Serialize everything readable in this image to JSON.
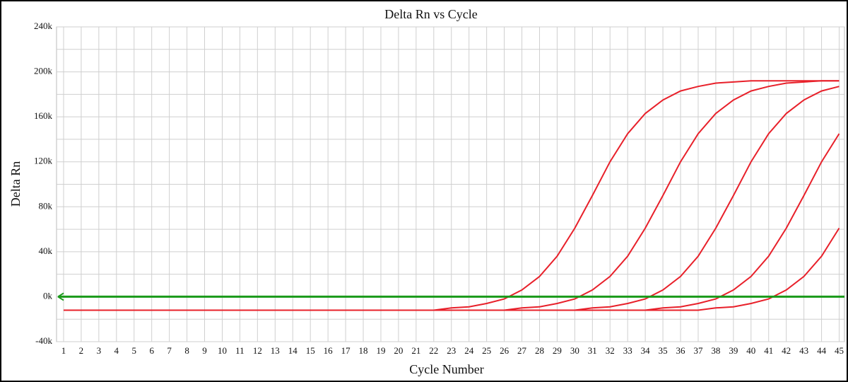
{
  "chart_data": {
    "type": "line",
    "title": "Delta Rn vs Cycle",
    "x_label": "Cycle Number",
    "y_label": "Delta Rn",
    "x": [
      1,
      2,
      3,
      4,
      5,
      6,
      7,
      8,
      9,
      10,
      11,
      12,
      13,
      14,
      15,
      16,
      17,
      18,
      19,
      20,
      21,
      22,
      23,
      24,
      25,
      26,
      27,
      28,
      29,
      30,
      31,
      32,
      33,
      34,
      35,
      36,
      37,
      38,
      39,
      40,
      41,
      42,
      43,
      44,
      45
    ],
    "xlim": [
      0.6,
      45.3
    ],
    "xticks": [
      1,
      2,
      3,
      4,
      5,
      6,
      7,
      8,
      9,
      10,
      11,
      12,
      13,
      14,
      15,
      16,
      17,
      18,
      19,
      20,
      21,
      22,
      23,
      24,
      25,
      26,
      27,
      28,
      29,
      30,
      31,
      32,
      33,
      34,
      35,
      36,
      37,
      38,
      39,
      40,
      41,
      42,
      43,
      44,
      45
    ],
    "ylim": [
      -40000,
      240000
    ],
    "yticks": [
      {
        "value": -40000,
        "label": "-40k"
      },
      {
        "value": 0,
        "label": "0k"
      },
      {
        "value": 40000,
        "label": "40k"
      },
      {
        "value": 80000,
        "label": "80k"
      },
      {
        "value": 120000,
        "label": "120k"
      },
      {
        "value": 160000,
        "label": "160k"
      },
      {
        "value": 200000,
        "label": "200k"
      },
      {
        "value": 240000,
        "label": "240k"
      }
    ],
    "yminor": [
      -20000,
      20000,
      60000,
      100000,
      140000,
      180000,
      220000
    ],
    "grid": true,
    "threshold": 0,
    "threshold_color": "#1a9a1a",
    "series": [
      {
        "color": "#e8202a",
        "values": [
          -12000,
          -12000,
          -12000,
          -12000,
          -12000,
          -12000,
          -12000,
          -12000,
          -12000,
          -12000,
          -12000,
          -12000,
          -12000,
          -12000,
          -12000,
          -12000,
          -12000,
          -12000,
          -12000,
          -12000,
          -12000,
          -12000,
          -10000,
          -9000,
          -6000,
          -2000,
          6000,
          18000,
          36000,
          61000,
          90000,
          120000,
          145000,
          163000,
          175000,
          183000,
          187000,
          190000,
          191000,
          192000,
          192000,
          192000,
          192000,
          192000,
          192000
        ]
      },
      {
        "color": "#e8202a",
        "values": [
          -12000,
          -12000,
          -12000,
          -12000,
          -12000,
          -12000,
          -12000,
          -12000,
          -12000,
          -12000,
          -12000,
          -12000,
          -12000,
          -12000,
          -12000,
          -12000,
          -12000,
          -12000,
          -12000,
          -12000,
          -12000,
          -12000,
          -12000,
          -12000,
          -12000,
          -12000,
          -10000,
          -9000,
          -6000,
          -2000,
          6000,
          18000,
          36000,
          61000,
          90000,
          120000,
          145000,
          163000,
          175000,
          183000,
          187000,
          190000,
          191000,
          192000,
          192000
        ]
      },
      {
        "color": "#e8202a",
        "values": [
          -12000,
          -12000,
          -12000,
          -12000,
          -12000,
          -12000,
          -12000,
          -12000,
          -12000,
          -12000,
          -12000,
          -12000,
          -12000,
          -12000,
          -12000,
          -12000,
          -12000,
          -12000,
          -12000,
          -12000,
          -12000,
          -12000,
          -12000,
          -12000,
          -12000,
          -12000,
          -12000,
          -12000,
          -12000,
          -12000,
          -10000,
          -9000,
          -6000,
          -2000,
          6000,
          18000,
          36000,
          61000,
          90000,
          120000,
          145000,
          163000,
          175000,
          183000,
          187000
        ]
      },
      {
        "color": "#e8202a",
        "values": [
          -12000,
          -12000,
          -12000,
          -12000,
          -12000,
          -12000,
          -12000,
          -12000,
          -12000,
          -12000,
          -12000,
          -12000,
          -12000,
          -12000,
          -12000,
          -12000,
          -12000,
          -12000,
          -12000,
          -12000,
          -12000,
          -12000,
          -12000,
          -12000,
          -12000,
          -12000,
          -12000,
          -12000,
          -12000,
          -12000,
          -12000,
          -12000,
          -12000,
          -12000,
          -10000,
          -9000,
          -6000,
          -2000,
          6000,
          18000,
          36000,
          61000,
          90000,
          120000,
          145000
        ]
      },
      {
        "color": "#e8202a",
        "values": [
          -12000,
          -12000,
          -12000,
          -12000,
          -12000,
          -12000,
          -12000,
          -12000,
          -12000,
          -12000,
          -12000,
          -12000,
          -12000,
          -12000,
          -12000,
          -12000,
          -12000,
          -12000,
          -12000,
          -12000,
          -12000,
          -12000,
          -12000,
          -12000,
          -12000,
          -12000,
          -12000,
          -12000,
          -12000,
          -12000,
          -12000,
          -12000,
          -12000,
          -12000,
          -12000,
          -12000,
          -12000,
          -10000,
          -9000,
          -6000,
          -2000,
          6000,
          18000,
          36000,
          61000
        ]
      }
    ]
  }
}
